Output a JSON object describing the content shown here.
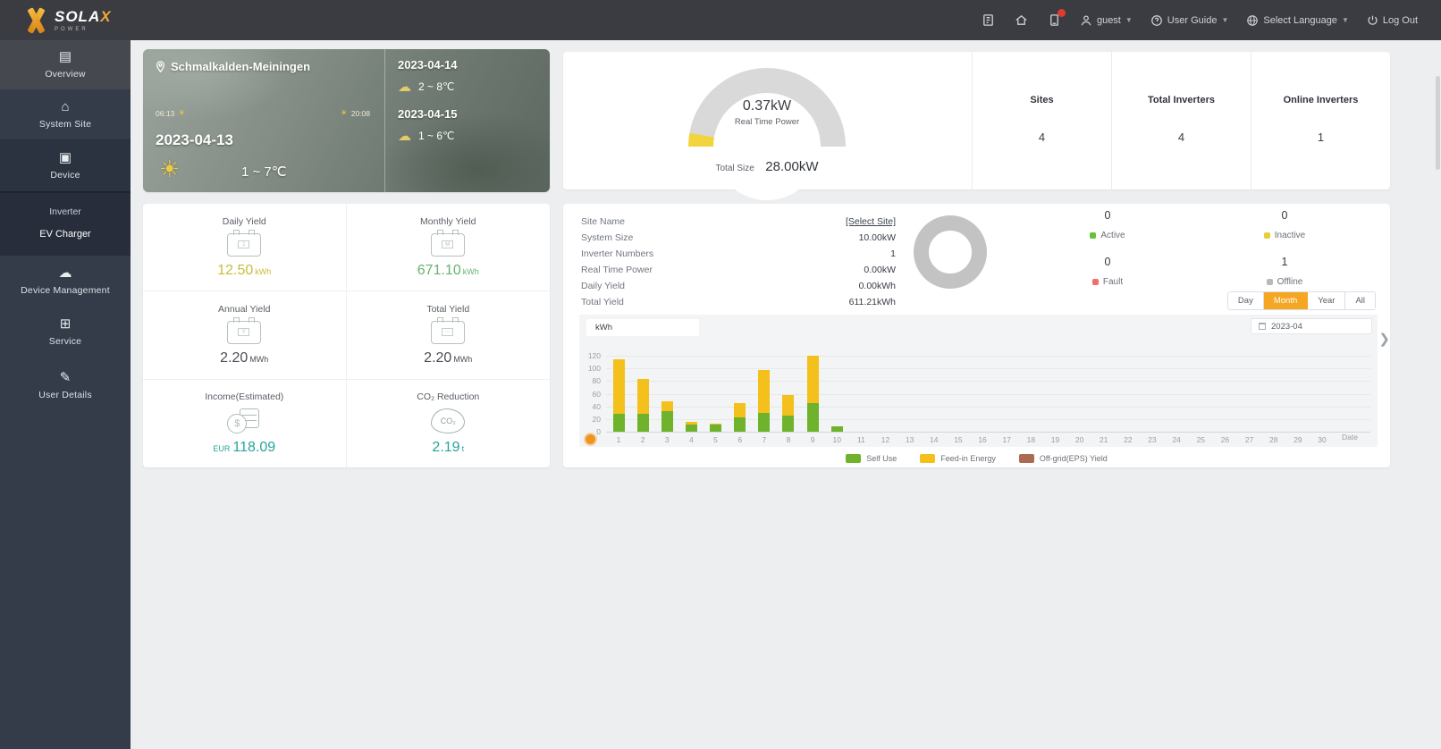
{
  "topbar": {
    "brand": "SOLA",
    "brand_x": "X",
    "brand_sub": "POWER",
    "user": "guest",
    "user_guide": "User Guide",
    "select_language": "Select Language",
    "log_out": "Log Out"
  },
  "sidebar": {
    "items": [
      {
        "label": "Overview"
      },
      {
        "label": "System Site"
      },
      {
        "label": "Device"
      },
      {
        "label": "Device Management"
      },
      {
        "label": "Service"
      },
      {
        "label": "User Details"
      }
    ],
    "device_submenu": [
      {
        "label": "Inverter"
      },
      {
        "label": "EV Charger"
      }
    ]
  },
  "weather": {
    "location": "Schmalkalden-Meiningen",
    "today_date": "2023-04-13",
    "today_temp": "1 ~ 7℃",
    "sunrise": "06:13",
    "sunset": "20:08",
    "forecast": [
      {
        "date": "2023-04-14",
        "temp": "2 ~ 8℃"
      },
      {
        "date": "2023-04-15",
        "temp": "1 ~ 6℃"
      }
    ]
  },
  "summary": {
    "real_time_power": "0.37kW",
    "real_time_power_label": "Real Time Power",
    "total_size_label": "Total Size",
    "total_size": "28.00kW",
    "stats": [
      {
        "label": "Sites",
        "value": "4"
      },
      {
        "label": "Total Inverters",
        "value": "4"
      },
      {
        "label": "Online Inverters",
        "value": "1"
      }
    ]
  },
  "tiles": [
    {
      "label": "Daily Yield",
      "prefix": "",
      "value": "12.50",
      "unit": "kWh",
      "color": "#c9bc35"
    },
    {
      "label": "Monthly Yield",
      "prefix": "",
      "value": "671.10",
      "unit": "kWh",
      "color": "#67b26f"
    },
    {
      "label": "Annual Yield",
      "prefix": "",
      "value": "2.20",
      "unit": "MWh",
      "color": "#4a4e55"
    },
    {
      "label": "Total Yield",
      "prefix": "",
      "value": "2.20",
      "unit": "MWh",
      "color": "#4a4e55"
    },
    {
      "label": "Income(Estimated)",
      "prefix": "EUR",
      "value": "118.09",
      "unit": "",
      "color": "#26a69a"
    },
    {
      "label": "CO₂ Reduction",
      "prefix": "",
      "value": "2.19",
      "unit": "t",
      "color": "#26a69a"
    }
  ],
  "site_panel": {
    "rows": [
      {
        "label": "Site Name",
        "value": "[Select Site]"
      },
      {
        "label": "System Size",
        "value": "10.00kW"
      },
      {
        "label": "Inverter Numbers",
        "value": "1"
      },
      {
        "label": "Real Time Power",
        "value": "0.00kW"
      },
      {
        "label": "Daily Yield",
        "value": "0.00kWh"
      },
      {
        "label": "Total Yield",
        "value": "611.21kWh"
      }
    ],
    "statuses": [
      {
        "count": "0",
        "label": "Active",
        "color": "#67c23a"
      },
      {
        "count": "0",
        "label": "Inactive",
        "color": "#e6cf3c"
      },
      {
        "count": "0",
        "label": "Fault",
        "color": "#f56c6c"
      },
      {
        "count": "1",
        "label": "Offline",
        "color": "#b6b9bd"
      }
    ],
    "tabs": [
      "Day",
      "Month",
      "Year",
      "All"
    ],
    "active_tab": "Month",
    "unit_select": "kWh",
    "date_value": "2023-04"
  },
  "chart_data": {
    "type": "bar",
    "stacked": true,
    "unit": "kWh",
    "xlabel": "Date",
    "ylim": [
      0,
      120
    ],
    "yticks": [
      0,
      20,
      40,
      60,
      80,
      100,
      120
    ],
    "grid": true,
    "legend_position": "bottom",
    "categories": [
      "1",
      "2",
      "3",
      "4",
      "5",
      "6",
      "7",
      "8",
      "9",
      "10",
      "11",
      "12",
      "13",
      "14",
      "15",
      "16",
      "17",
      "18",
      "19",
      "20",
      "21",
      "22",
      "23",
      "24",
      "25",
      "26",
      "27",
      "28",
      "29",
      "30"
    ],
    "series": [
      {
        "name": "Self Use",
        "color": "#6fb22c",
        "values": [
          28,
          28,
          33,
          12,
          11,
          22,
          30,
          25,
          45,
          8,
          0,
          0,
          0,
          0,
          0,
          0,
          0,
          0,
          0,
          0,
          0,
          0,
          0,
          0,
          0,
          0,
          0,
          0,
          0,
          0
        ]
      },
      {
        "name": "Feed-in Energy",
        "color": "#f3c01c",
        "values": [
          87,
          56,
          15,
          3,
          2,
          23,
          68,
          33,
          75,
          0,
          0,
          0,
          0,
          0,
          0,
          0,
          0,
          0,
          0,
          0,
          0,
          0,
          0,
          0,
          0,
          0,
          0,
          0,
          0,
          0
        ]
      },
      {
        "name": "Off-grid(EPS) Yield",
        "color": "#ad6a52",
        "values": [
          0,
          0,
          0,
          0,
          0,
          0,
          0,
          0,
          0,
          0,
          0,
          0,
          0,
          0,
          0,
          0,
          0,
          0,
          0,
          0,
          0,
          0,
          0,
          0,
          0,
          0,
          0,
          0,
          0,
          0
        ]
      }
    ]
  },
  "colors": {
    "accent": "#f5a623",
    "gauge_fill": "#f2d43c",
    "gauge_track": "#d9d9d9",
    "donut": "#c3c3c3"
  }
}
